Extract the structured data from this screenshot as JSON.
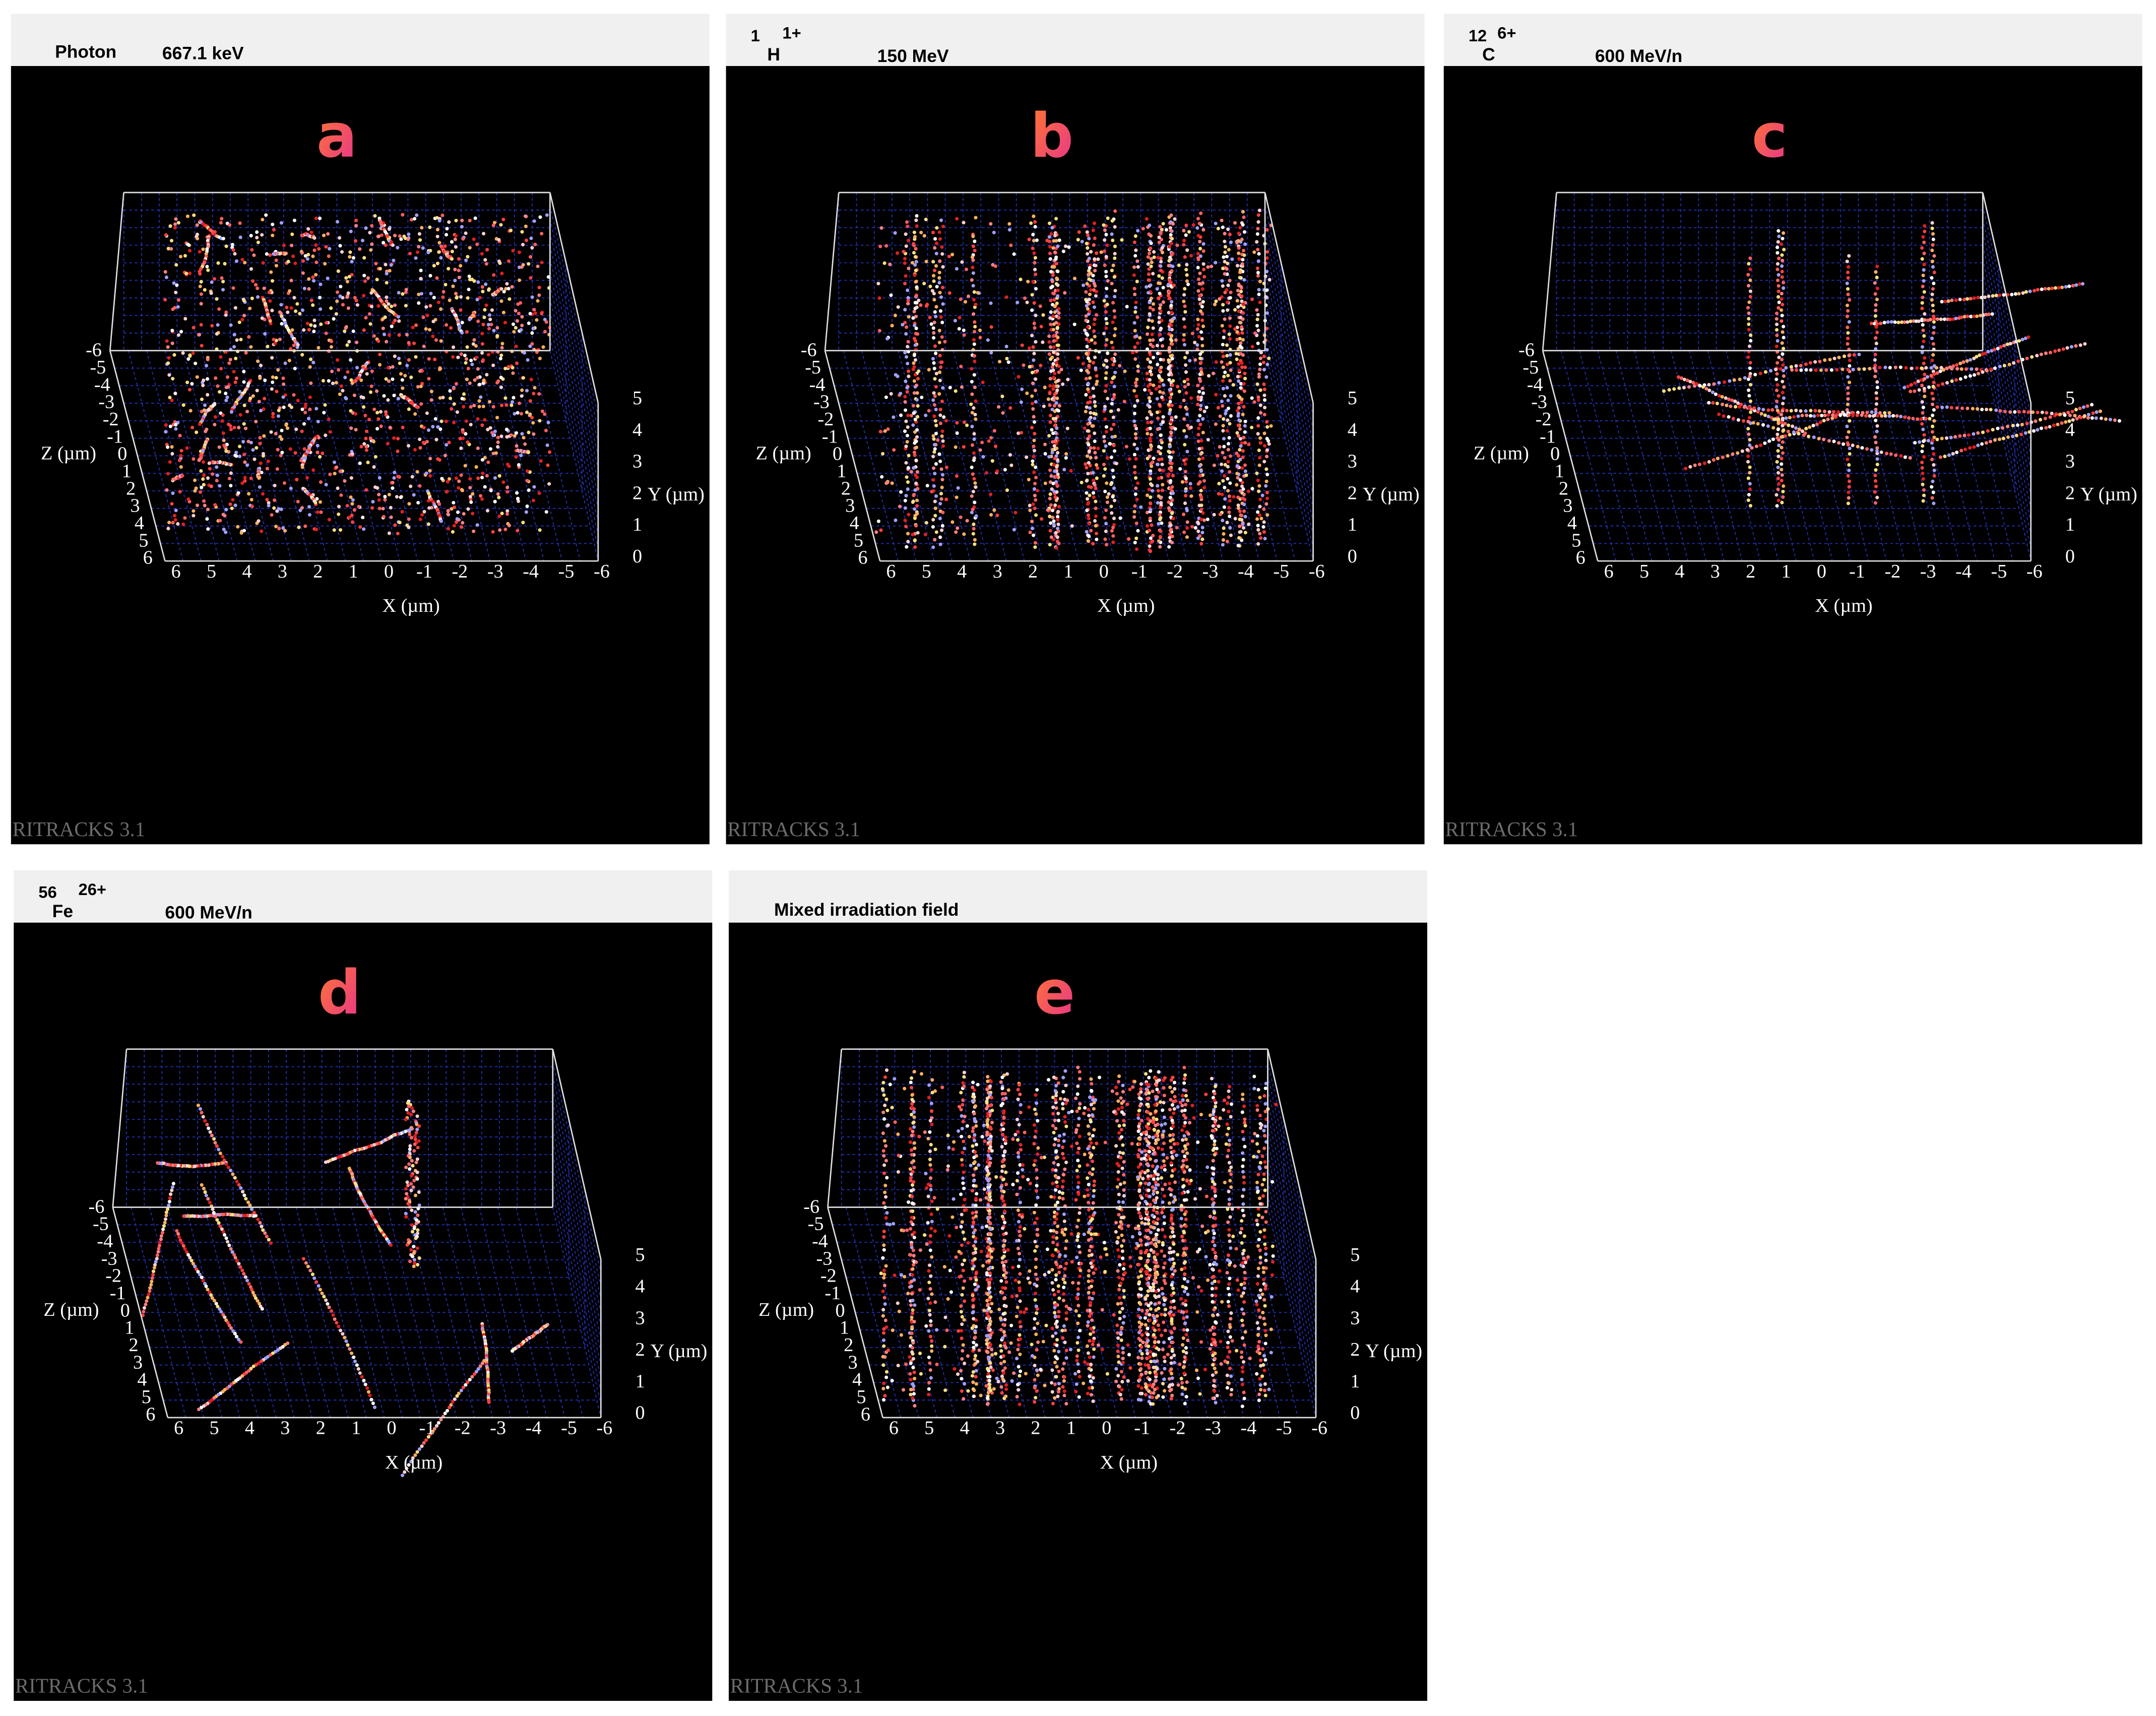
{
  "panels": [
    {
      "letter": "a",
      "header": {
        "particle": "Photon",
        "energy": "667.1 keV"
      }
    },
    {
      "letter": "b",
      "header": {
        "mass": "1",
        "symbol": "H",
        "charge": "1+",
        "energy": "150 MeV"
      }
    },
    {
      "letter": "c",
      "header": {
        "mass": "12",
        "symbol": "C",
        "charge": "6+",
        "energy": "600 MeV/n"
      }
    },
    {
      "letter": "d",
      "header": {
        "mass": "56",
        "symbol": "Fe",
        "charge": "26+",
        "energy": "600 MeV/n"
      }
    },
    {
      "letter": "e",
      "header": {
        "title": "Mixed irradiation field"
      }
    }
  ],
  "axes": {
    "x_label": "X (µm)",
    "y_label": "Y (µm)",
    "z_label": "Z (µm)",
    "x_ticks": [
      "6",
      "5",
      "4",
      "3",
      "2",
      "1",
      "0",
      "-1",
      "-2",
      "-3",
      "-4",
      "-5",
      "-6"
    ],
    "y_ticks": [
      "0",
      "1",
      "2",
      "3",
      "4",
      "5"
    ],
    "z_ticks": [
      "-6",
      "-5",
      "-4",
      "-3",
      "-2",
      "-1",
      "0",
      "1",
      "2",
      "3",
      "4",
      "5",
      "6"
    ]
  },
  "watermark": "RITRACKS 3.1"
}
